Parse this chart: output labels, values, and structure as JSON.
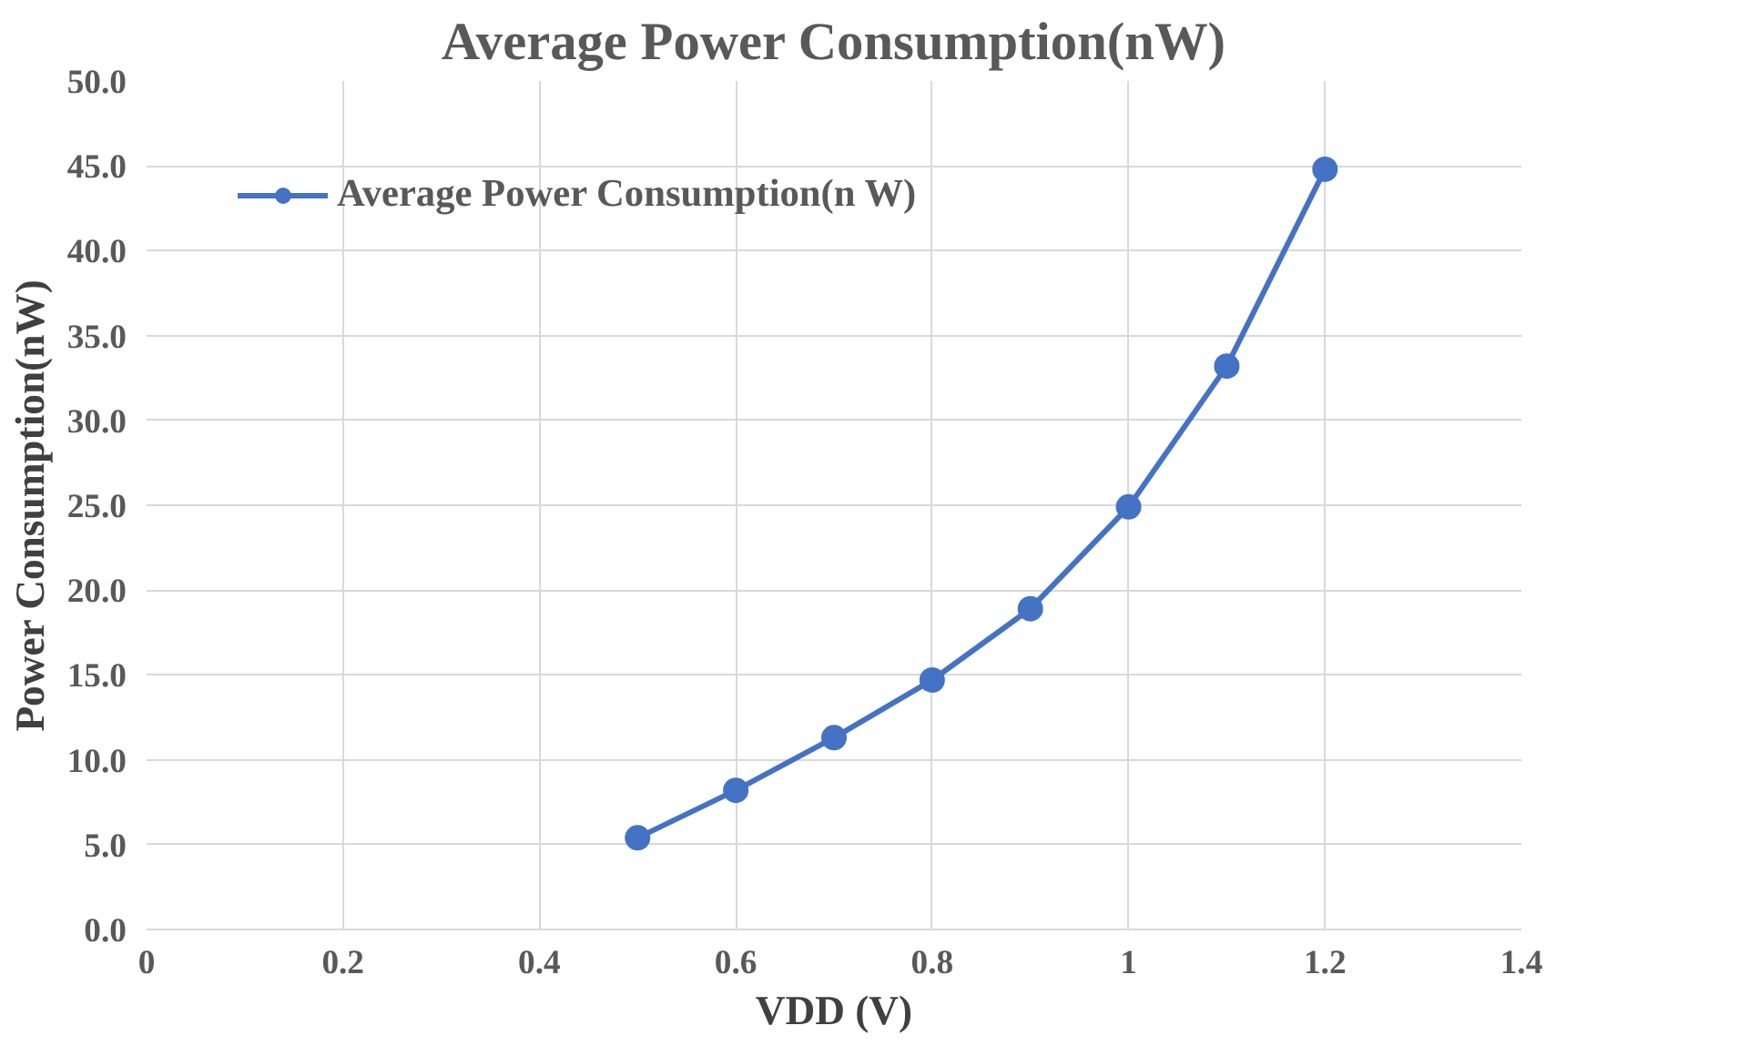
{
  "chart_data": {
    "type": "line",
    "title": "Average Power Consumption(nW)",
    "xlabel": "VDD (V)",
    "ylabel": "Power Consumption(nW)",
    "x": [
      0.5,
      0.6,
      0.7,
      0.8,
      0.9,
      1.0,
      1.1,
      1.2
    ],
    "series": [
      {
        "name": "Average Power Consumption(n W)",
        "color": "#4472c4",
        "values": [
          5.4,
          8.2,
          11.3,
          14.7,
          18.9,
          24.9,
          33.2,
          44.8
        ]
      }
    ],
    "xlim": [
      0,
      1.4
    ],
    "xticks": [
      0,
      0.2,
      0.4,
      0.6,
      0.8,
      1,
      1.2,
      1.4
    ],
    "ylim": [
      0,
      50
    ],
    "yticks": [
      {
        "value": 0,
        "label": "0.0"
      },
      {
        "value": 5,
        "label": "5.0"
      },
      {
        "value": 10,
        "label": "10.0"
      },
      {
        "value": 15,
        "label": "15.0"
      },
      {
        "value": 20,
        "label": "20.0"
      },
      {
        "value": 25,
        "label": "25.0"
      },
      {
        "value": 30,
        "label": "30.0"
      },
      {
        "value": 35,
        "label": "35.0"
      },
      {
        "value": 40,
        "label": "40.0"
      },
      {
        "value": 45,
        "label": "45.0"
      },
      {
        "value": 50,
        "label": "50.0"
      }
    ],
    "grid": true,
    "legend": "top left",
    "marker": "circle",
    "line_style": "solid"
  }
}
